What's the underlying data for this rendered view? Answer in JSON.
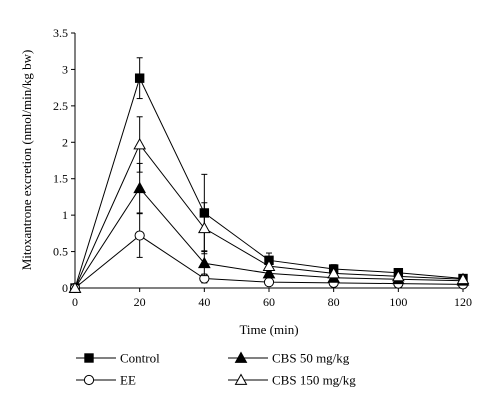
{
  "chart_data": {
    "type": "line",
    "title": "",
    "xlabel": "Time (min)",
    "ylabel": "Mitoxantrone excretion (nmol/min/kg bw)",
    "x": [
      0,
      20,
      40,
      60,
      80,
      100,
      120
    ],
    "xlim": [
      0,
      120
    ],
    "ylim": [
      0,
      3.5
    ],
    "xticks": [
      "0",
      "20",
      "40",
      "60",
      "80",
      "100",
      "120"
    ],
    "yticks": [
      "0",
      "0.5",
      "1",
      "1.5",
      "2",
      "2.5",
      "3",
      "3.5"
    ],
    "grid": false,
    "legend_position": "bottom",
    "series": [
      {
        "name": "Control",
        "marker": "filled-square",
        "values": [
          0,
          2.88,
          1.03,
          0.38,
          0.26,
          0.21,
          0.13
        ],
        "errors": [
          0,
          0.28,
          0.53,
          0.1,
          0.06,
          0.05,
          0.05
        ]
      },
      {
        "name": "EE",
        "marker": "open-circle",
        "values": [
          0,
          0.72,
          0.13,
          0.08,
          0.07,
          0.06,
          0.05
        ],
        "errors": [
          0,
          0.3,
          0.06,
          0.03,
          0.03,
          0.03,
          0.03
        ]
      },
      {
        "name": "CBS 50 mg/kg",
        "marker": "filled-triangle",
        "values": [
          0,
          1.37,
          0.34,
          0.2,
          0.14,
          0.12,
          0.1
        ],
        "errors": [
          0,
          0.34,
          0.17,
          0.05,
          0.04,
          0.04,
          0.04
        ]
      },
      {
        "name": "CBS 150 mg/kg",
        "marker": "open-triangle",
        "values": [
          0,
          1.97,
          0.82,
          0.3,
          0.2,
          0.16,
          0.12
        ],
        "errors": [
          0,
          0.38,
          0.35,
          0.08,
          0.05,
          0.05,
          0.05
        ]
      }
    ]
  }
}
